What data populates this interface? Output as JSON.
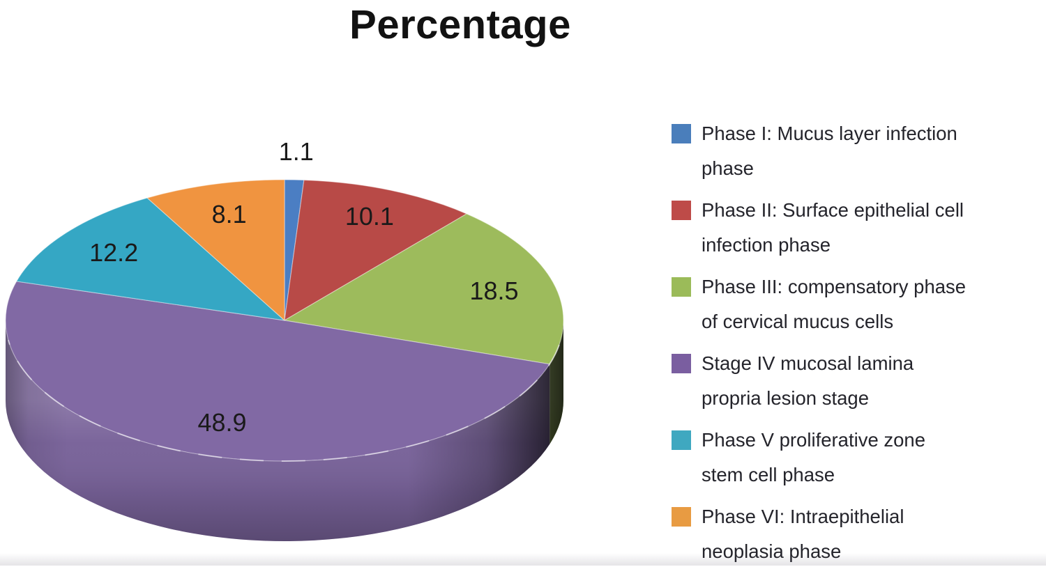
{
  "chart_data": {
    "type": "pie",
    "projection": "3d",
    "title": "Percentage",
    "labels": [
      "Phase I: Mucus layer infection phase",
      "Phase II: Surface epithelial cell infection phase",
      "Phase III: compensatory phase of cervical mucus cells",
      "Stage IV mucosal lamina propria lesion stage",
      "Phase V proliferative zone stem cell phase",
      "Phase VI: Intraepithelial neoplasia phase"
    ],
    "values": [
      1.1,
      10.1,
      18.5,
      48.9,
      12.2,
      8.1
    ],
    "data_labels": [
      "1.1",
      "10.1",
      "18.5",
      "48.9",
      "12.2",
      "8.1"
    ],
    "colors": [
      "#4b7ec3",
      "#b84a47",
      "#9dbb5c",
      "#8169a4",
      "#35a7c4",
      "#f09440"
    ],
    "start_angle": "12 o'clock",
    "direction": "clockwise",
    "legend_position": "right",
    "grid": false
  },
  "legend": {
    "items": [
      {
        "color": "#4a7ebb",
        "label": "Phase I: Mucus layer infection phase",
        "lines": [
          "Phase I: Mucus layer infection",
          "phase"
        ]
      },
      {
        "color": "#be4b48",
        "label": "Phase II: Surface epithelial cell infection phase",
        "lines": [
          "Phase II: Surface epithelial cell",
          "infection phase"
        ]
      },
      {
        "color": "#9bbb59",
        "label": "Phase III: compensatory phase of cervical mucus cells",
        "lines": [
          "Phase III: compensatory phase",
          "of cervical mucus cells"
        ]
      },
      {
        "color": "#7a5ea0",
        "label": "Stage IV mucosal lamina propria lesion stage",
        "lines": [
          "Stage IV mucosal lamina",
          "propria lesion stage"
        ]
      },
      {
        "color": "#3fa8c0",
        "label": "Phase V proliferative zone stem cell phase",
        "lines": [
          "Phase V proliferative zone",
          "stem cell phase"
        ]
      },
      {
        "color": "#e89b42",
        "label": "Phase VI: Intraepithelial neoplasia phase",
        "lines": [
          "Phase VI: Intraepithelial",
          "neoplasia phase"
        ]
      }
    ]
  }
}
